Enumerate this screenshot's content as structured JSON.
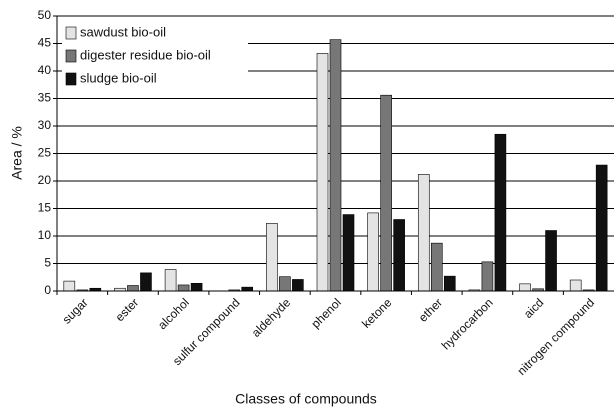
{
  "chart_data": {
    "type": "bar",
    "x_label": "Classes of compounds",
    "y_label": "Area / %",
    "categories": [
      "sugar",
      "ester",
      "alcohol",
      "sulfur compound",
      "aldehyde",
      "phenol",
      "ketone",
      "ether",
      "hydrocarbon",
      "aicd",
      "nitrogen compound"
    ],
    "series": [
      {
        "name": "sawdust bio-oil",
        "color": "#e4e4e4",
        "values": [
          1.8,
          0.5,
          3.9,
          0,
          12.3,
          43.2,
          14.2,
          21.2,
          0.2,
          1.3,
          2.0
        ]
      },
      {
        "name": "digester residue bio-oil",
        "color": "#777777",
        "values": [
          0.2,
          1.0,
          1.1,
          0.2,
          2.6,
          45.7,
          35.6,
          8.7,
          5.3,
          0.4,
          0.2
        ]
      },
      {
        "name": "sludge bio-oil",
        "color": "#111111",
        "values": [
          0.5,
          3.3,
          1.4,
          0.7,
          2.1,
          13.9,
          13.0,
          2.7,
          28.5,
          11.0,
          22.9
        ]
      }
    ],
    "ylim": [
      0,
      50
    ],
    "yticks": [
      0,
      5,
      10,
      15,
      20,
      25,
      30,
      35,
      40,
      45,
      50
    ],
    "grid": true,
    "legend": "top-left"
  }
}
